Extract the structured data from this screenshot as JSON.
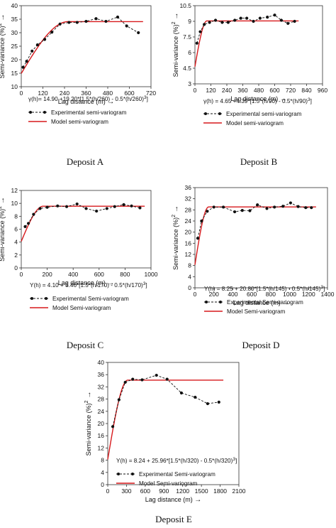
{
  "chart_data": [
    {
      "type": "line",
      "caption": "Deposit A",
      "xlabel": "Lag distance (m)",
      "ylabel": "Semi-variance (%)",
      "ylabel_sup": "2",
      "xlim": [
        0,
        720
      ],
      "ylim": [
        10,
        40
      ],
      "xticks": [
        0,
        120,
        240,
        360,
        480,
        600,
        720
      ],
      "yticks": [
        10,
        15,
        20,
        25,
        30,
        35,
        40
      ],
      "equation": "γ(h)= 14.90 +19.20*[1.5*(h/260) - 0.5*(h/260)",
      "equation_sup": "3",
      "equation_end": "]",
      "legend": [
        "Experimental semi-variogram",
        "Model semi-variogram"
      ],
      "model": {
        "nugget": 14.9,
        "sill": 19.2,
        "range": 260
      },
      "series": [
        {
          "x": [
            10,
            30,
            60,
            90,
            130,
            170,
            215,
            265,
            310,
            360,
            415,
            470,
            535,
            585,
            650
          ],
          "y": [
            17.2,
            19.4,
            23.2,
            25.5,
            27.5,
            30.2,
            33.2,
            33.8,
            33.8,
            34.2,
            35.2,
            34.2,
            35.8,
            32.5,
            30.0
          ]
        }
      ]
    },
    {
      "type": "line",
      "caption": "Deposit B",
      "xlabel": "Lag distance (m)",
      "ylabel": "Semi-variance (%)",
      "ylabel_sup": "2",
      "xlim": [
        0,
        960
      ],
      "ylim": [
        3,
        10.5
      ],
      "xticks": [
        0,
        120,
        240,
        360,
        480,
        600,
        720,
        840,
        960
      ],
      "yticks": [
        3,
        4.5,
        6,
        7.5,
        9,
        10.5
      ],
      "equation": "γ(h) = 4.65 +4.39*[1.5*(h/90) - 0.5*(h/90)",
      "equation_sup": "3",
      "equation_end": "]",
      "legend": [
        "Experimental semi-variogram",
        "Model semi-variogram"
      ],
      "model": {
        "nugget": 4.65,
        "sill": 4.39,
        "range": 90
      },
      "series": [
        {
          "x": [
            15,
            40,
            70,
            110,
            155,
            205,
            250,
            300,
            345,
            390,
            440,
            490,
            545,
            600,
            650,
            700,
            750
          ],
          "y": [
            6.9,
            8.0,
            8.7,
            8.9,
            9.1,
            8.9,
            8.9,
            9.1,
            9.3,
            9.3,
            9.0,
            9.3,
            9.4,
            9.6,
            9.1,
            8.8,
            9.0
          ]
        }
      ]
    },
    {
      "type": "line",
      "caption": "Deposit C",
      "xlabel": "Lag distance (m)",
      "ylabel": "Semi-variance (%)",
      "ylabel_sup": "2",
      "xlim": [
        0,
        1000
      ],
      "ylim": [
        0,
        12
      ],
      "xticks": [
        0,
        200,
        400,
        600,
        800,
        1000
      ],
      "yticks": [
        0,
        2,
        4,
        6,
        8,
        10,
        12
      ],
      "equation": "Y(h) = 4.10 + 5.46*[1.5*(h/170) - 0.5*(h/170)",
      "equation_sup": "3",
      "equation_end": "]",
      "legend": [
        "Experimental Semi-variogram",
        "Model Semi-variogram"
      ],
      "model": {
        "nugget": 4.1,
        "sill": 5.46,
        "range": 170
      },
      "series": [
        {
          "x": [
            30,
            55,
            95,
            145,
            200,
            280,
            350,
            430,
            500,
            580,
            660,
            720,
            790,
            850,
            915
          ],
          "y": [
            6.4,
            6.9,
            8.3,
            9.2,
            9.4,
            9.6,
            9.5,
            9.9,
            9.2,
            8.8,
            9.2,
            9.5,
            9.8,
            9.6,
            9.3
          ]
        }
      ]
    },
    {
      "type": "line",
      "caption": "Deposit D",
      "xlabel": "Lag distance (m)",
      "ylabel": "Semi-variance (%)",
      "ylabel_sup": "2",
      "xlim": [
        0,
        1400
      ],
      "ylim": [
        0,
        36
      ],
      "xticks": [
        0,
        200,
        400,
        600,
        800,
        1000,
        1200,
        1400
      ],
      "yticks": [
        0,
        4,
        8,
        12,
        16,
        20,
        24,
        28,
        32,
        36
      ],
      "equation": "Y(h) = 8.25 + 20.80*[1.5*(h/145) - 0.5*(h/145)",
      "equation_sup": "3",
      "equation_end": "]",
      "legend": [
        "Experimental Semi-variogram",
        "Model Semi-variogram"
      ],
      "model": {
        "nugget": 8.25,
        "sill": 20.8,
        "range": 145
      },
      "series": [
        {
          "x": [
            30,
            70,
            130,
            200,
            300,
            420,
            500,
            580,
            660,
            760,
            840,
            930,
            1010,
            1090,
            1170,
            1230
          ],
          "y": [
            17.8,
            24.0,
            27.5,
            29.0,
            29.0,
            27.3,
            27.8,
            27.7,
            29.8,
            28.5,
            29.0,
            29.3,
            30.5,
            29.2,
            28.8,
            28.8
          ]
        }
      ]
    },
    {
      "type": "line",
      "caption": "Deposit E",
      "xlabel": "Lag distance (m)",
      "ylabel": "Semi-variance (%)",
      "ylabel_sup": "2",
      "xlim": [
        0,
        2100
      ],
      "ylim": [
        0,
        40
      ],
      "xticks": [
        0,
        300,
        600,
        900,
        1200,
        1500,
        1800,
        2100
      ],
      "yticks": [
        0,
        4,
        8,
        12,
        16,
        20,
        24,
        28,
        32,
        36,
        40
      ],
      "equation": "Y(h) = 8.24 + 25.96*[1.5*(h/320) - 0.5*(h/320)",
      "equation_sup": "3",
      "equation_end": "]",
      "legend": [
        "Experimental Semi-variogram",
        "Model Semi-variogram"
      ],
      "model": {
        "nugget": 8.24,
        "sill": 25.96,
        "range": 320
      },
      "series": [
        {
          "x": [
            80,
            180,
            280,
            400,
            550,
            780,
            950,
            1180,
            1400,
            1600,
            1780
          ],
          "y": [
            19.0,
            27.8,
            33.5,
            34.5,
            34.3,
            35.8,
            34.5,
            30.0,
            28.6,
            26.5,
            27.0
          ]
        }
      ]
    }
  ]
}
